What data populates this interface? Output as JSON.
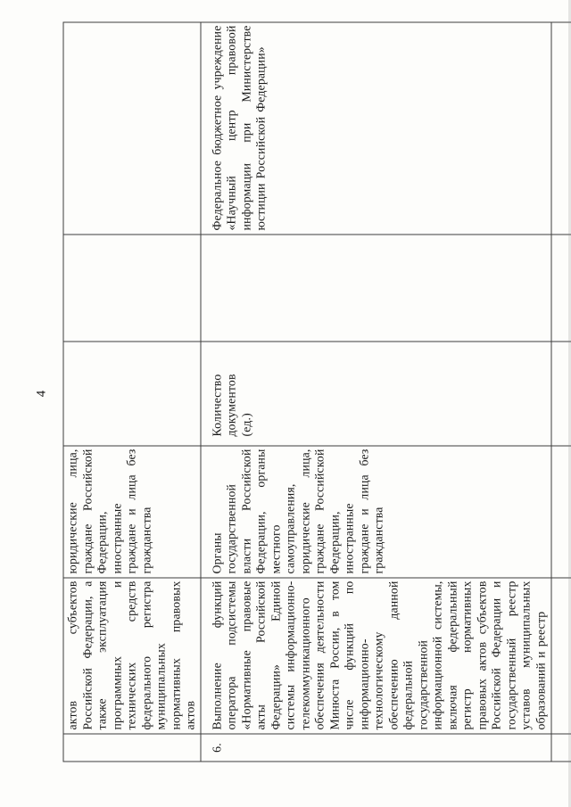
{
  "page_number": "4",
  "table": {
    "row_continuation": {
      "num": "",
      "activity": "актов субъектов Российской Федерации, а также эксплуатация программных и технических средств федерального регистра муниципальных нормативных правовых актов",
      "consumers": "юридические лица, граждане Российской Федерации, иностранные граждане и лица без гражданства",
      "indicator": "",
      "middle": "",
      "executor": ""
    },
    "row_6": {
      "num": "6.",
      "activity": "Выполнение функций оператора подсистемы «Нормативные правовые акты Российской Федерации» Единой системы информационно-телекоммуникационного обеспечения деятельности Минюста России, в том числе функций по информационно-технологическому обеспечению данной федеральной государственной информационной системы, включая федеральный регистр нормативных правовых актов субъектов Российской Федерации и государственный реестр уставов муниципальных образований и реестр",
      "consumers": "Органы государственной власти Российской Федерации, органы местного самоуправления, юридические лица, граждане Российской Федерации, иностранные граждане и лица без гражданства",
      "indicator": "Количество документов (ед.)",
      "middle": "",
      "executor": "Федеральное бюджетное учреждение «Научный центр правовой информации при Министерстве юстиции Российской Федерации»"
    },
    "row_next": {
      "num": "",
      "activity": "",
      "consumers": "",
      "indicator": "",
      "middle": "",
      "executor": ""
    }
  }
}
